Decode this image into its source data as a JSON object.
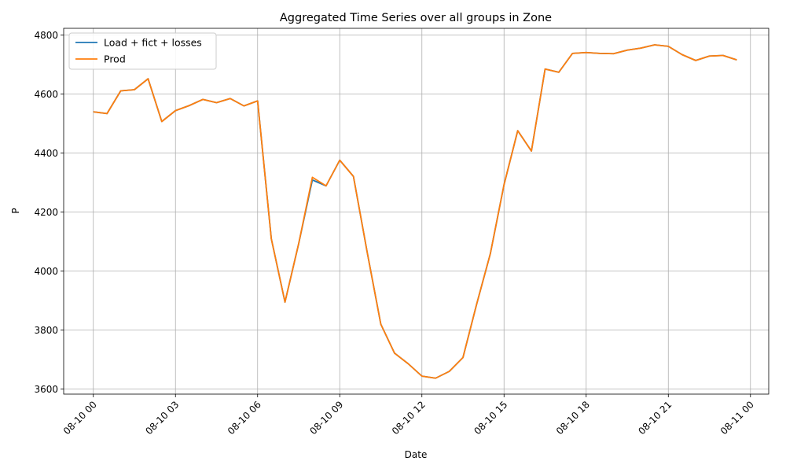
{
  "chart_data": {
    "type": "line",
    "title": "Aggregated Time Series over all groups in Zone",
    "xlabel": "Date",
    "ylabel": "P",
    "grid": true,
    "legend_position": "top-left",
    "x_ticks": [
      "08-10 00",
      "08-10 03",
      "08-10 06",
      "08-10 09",
      "08-10 12",
      "08-10 15",
      "08-10 18",
      "08-10 21",
      "08-11 00"
    ],
    "y_ticks": [
      3600,
      3800,
      4000,
      4200,
      4400,
      4600,
      4800
    ],
    "xlim": [
      "2024-08-09T22:55",
      "2024-08-11T00:40"
    ],
    "ylim": [
      3583,
      4823
    ],
    "x": [
      "2024-08-10T00:00",
      "2024-08-10T00:30",
      "2024-08-10T01:00",
      "2024-08-10T01:30",
      "2024-08-10T02:00",
      "2024-08-10T02:30",
      "2024-08-10T03:00",
      "2024-08-10T03:30",
      "2024-08-10T04:00",
      "2024-08-10T04:30",
      "2024-08-10T05:00",
      "2024-08-10T05:30",
      "2024-08-10T06:00",
      "2024-08-10T06:30",
      "2024-08-10T07:00",
      "2024-08-10T07:30",
      "2024-08-10T08:00",
      "2024-08-10T08:30",
      "2024-08-10T09:00",
      "2024-08-10T09:30",
      "2024-08-10T10:00",
      "2024-08-10T10:30",
      "2024-08-10T11:00",
      "2024-08-10T11:30",
      "2024-08-10T12:00",
      "2024-08-10T12:30",
      "2024-08-10T13:00",
      "2024-08-10T13:30",
      "2024-08-10T14:00",
      "2024-08-10T14:30",
      "2024-08-10T15:00",
      "2024-08-10T15:30",
      "2024-08-10T16:00",
      "2024-08-10T16:30",
      "2024-08-10T17:00",
      "2024-08-10T17:30",
      "2024-08-10T18:00",
      "2024-08-10T18:30",
      "2024-08-10T19:00",
      "2024-08-10T19:30",
      "2024-08-10T20:00",
      "2024-08-10T20:30",
      "2024-08-10T21:00",
      "2024-08-10T21:30",
      "2024-08-10T22:00",
      "2024-08-10T22:30",
      "2024-08-10T23:00",
      "2024-08-10T23:30"
    ],
    "series": [
      {
        "name": "Load + fict + losses",
        "color": "#1f77b4",
        "values": [
          4540,
          4534,
          4611,
          4615,
          4652,
          4507,
          4544,
          4561,
          4582,
          4571,
          4585,
          4560,
          4577,
          4110,
          3895,
          4093,
          4309,
          4289,
          4376,
          4321,
          4065,
          3820,
          3722,
          3686,
          3644,
          3637,
          3660,
          3707,
          3888,
          4059,
          4293,
          4476,
          4407,
          4685,
          4674,
          4738,
          4741,
          4738,
          4737,
          4749,
          4756,
          4767,
          4762,
          4734,
          4714,
          4729,
          4731,
          4716
        ]
      },
      {
        "name": "Prod",
        "color": "#ff7f0e",
        "values": [
          4540,
          4534,
          4611,
          4615,
          4652,
          4507,
          4544,
          4561,
          4582,
          4571,
          4585,
          4560,
          4577,
          4110,
          3895,
          4093,
          4318,
          4289,
          4376,
          4321,
          4065,
          3820,
          3722,
          3686,
          3644,
          3637,
          3660,
          3707,
          3888,
          4059,
          4293,
          4476,
          4407,
          4685,
          4674,
          4738,
          4741,
          4738,
          4737,
          4749,
          4756,
          4767,
          4762,
          4734,
          4714,
          4729,
          4731,
          4716
        ]
      }
    ]
  }
}
